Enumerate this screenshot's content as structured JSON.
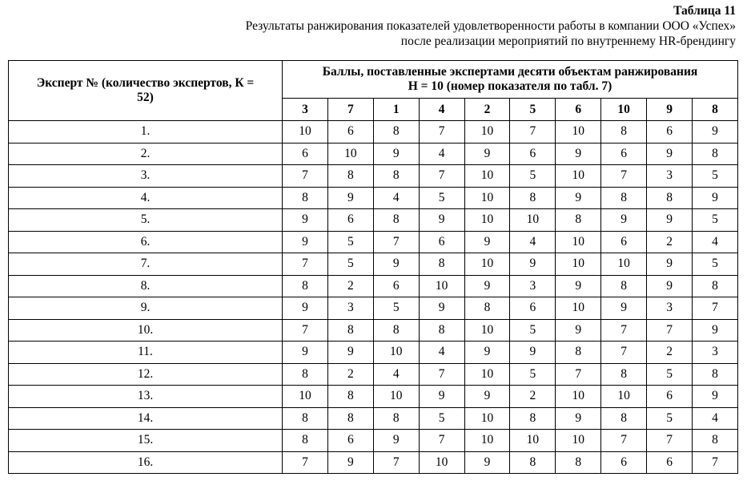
{
  "caption": {
    "number": "Таблица 11",
    "line1": "Результаты ранжирования показателей удовлетворенности работы в компании ООО «Успех»",
    "line2": "после реализации мероприятий по внутреннему HR-брендингу"
  },
  "table": {
    "expert_header": "Эксперт № (количество экспертов, К = 52)",
    "scores_header_line1": "Баллы, поставленные экспертами десяти объектам ранжирования",
    "scores_header_line2": "Н = 10 (номер показателя по табл. 7)",
    "columns": [
      "3",
      "7",
      "1",
      "4",
      "2",
      "5",
      "6",
      "10",
      "9",
      "8"
    ],
    "rows": [
      {
        "expert": "1.",
        "scores": [
          "10",
          "6",
          "8",
          "7",
          "10",
          "7",
          "10",
          "8",
          "6",
          "9"
        ]
      },
      {
        "expert": "2.",
        "scores": [
          "6",
          "10",
          "9",
          "4",
          "9",
          "6",
          "9",
          "6",
          "9",
          "8"
        ]
      },
      {
        "expert": "3.",
        "scores": [
          "7",
          "8",
          "8",
          "7",
          "10",
          "5",
          "10",
          "7",
          "3",
          "5"
        ]
      },
      {
        "expert": "4.",
        "scores": [
          "8",
          "9",
          "4",
          "5",
          "10",
          "8",
          "9",
          "8",
          "8",
          "9"
        ]
      },
      {
        "expert": "5.",
        "scores": [
          "9",
          "6",
          "8",
          "9",
          "10",
          "10",
          "8",
          "9",
          "9",
          "5"
        ]
      },
      {
        "expert": "6.",
        "scores": [
          "9",
          "5",
          "7",
          "6",
          "9",
          "4",
          "10",
          "6",
          "2",
          "4"
        ]
      },
      {
        "expert": "7.",
        "scores": [
          "7",
          "5",
          "9",
          "8",
          "10",
          "9",
          "10",
          "10",
          "9",
          "5"
        ]
      },
      {
        "expert": "8.",
        "scores": [
          "8",
          "2",
          "6",
          "10",
          "9",
          "3",
          "9",
          "8",
          "9",
          "8"
        ]
      },
      {
        "expert": "9.",
        "scores": [
          "9",
          "3",
          "5",
          "9",
          "8",
          "6",
          "10",
          "9",
          "3",
          "7"
        ]
      },
      {
        "expert": "10.",
        "scores": [
          "7",
          "8",
          "8",
          "8",
          "10",
          "5",
          "9",
          "7",
          "7",
          "9"
        ]
      },
      {
        "expert": "11.",
        "scores": [
          "9",
          "9",
          "10",
          "4",
          "9",
          "9",
          "8",
          "7",
          "2",
          "3"
        ]
      },
      {
        "expert": "12.",
        "scores": [
          "8",
          "2",
          "4",
          "7",
          "10",
          "5",
          "7",
          "8",
          "5",
          "8"
        ]
      },
      {
        "expert": "13.",
        "scores": [
          "10",
          "8",
          "10",
          "9",
          "9",
          "2",
          "10",
          "10",
          "6",
          "9"
        ]
      },
      {
        "expert": "14.",
        "scores": [
          "8",
          "8",
          "8",
          "5",
          "10",
          "8",
          "9",
          "8",
          "5",
          "4"
        ]
      },
      {
        "expert": "15.",
        "scores": [
          "8",
          "6",
          "9",
          "7",
          "10",
          "10",
          "10",
          "7",
          "7",
          "8"
        ]
      },
      {
        "expert": "16.",
        "scores": [
          "7",
          "9",
          "7",
          "10",
          "9",
          "8",
          "8",
          "6",
          "6",
          "7"
        ]
      }
    ]
  }
}
